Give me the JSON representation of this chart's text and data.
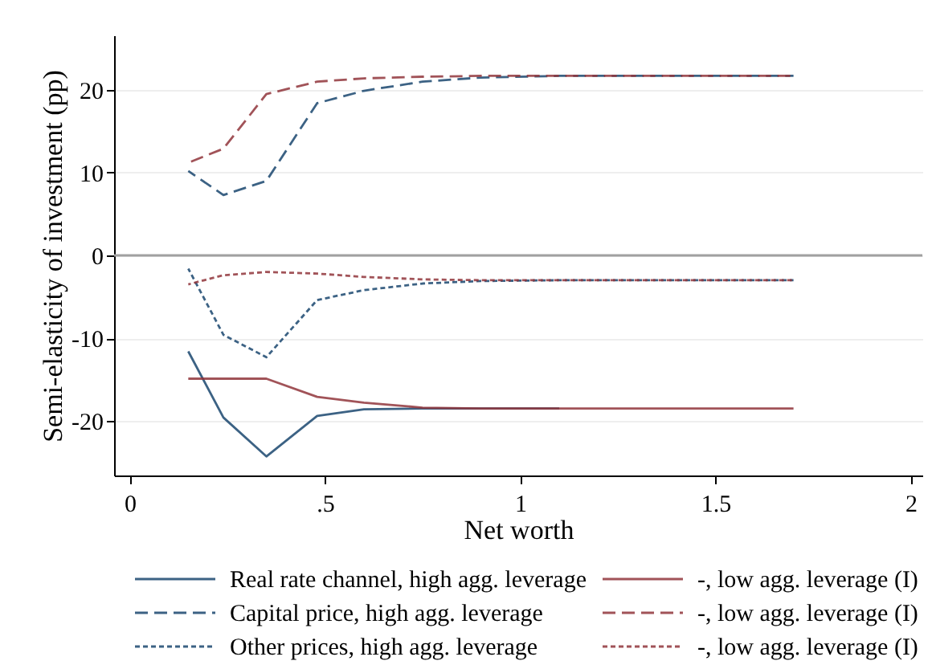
{
  "chart_data": {
    "type": "line",
    "xlabel": "Net worth",
    "ylabel": "Semi-elasticity of investment (pp)",
    "x": [
      0.15,
      0.24,
      0.35,
      0.48,
      0.6,
      0.75,
      0.9,
      1.1,
      1.3,
      1.5,
      1.7
    ],
    "xlim": [
      -0.04,
      2.03
    ],
    "xticks": [
      0,
      {
        "value": 0.5,
        "label": ".5"
      },
      1,
      1.5,
      2
    ],
    "ylim": [
      -26.6,
      26.6
    ],
    "yticks": [
      -20,
      -10,
      0,
      10,
      20
    ],
    "grid": "y",
    "legend": "bottom",
    "ref_lines": [
      {
        "axis": "y",
        "value": 0,
        "color": "#a0a0a0"
      }
    ],
    "series": [
      {
        "name": "Real rate channel, high agg. leverage",
        "color": "#1a476f",
        "line_style": "solid",
        "values": [
          -11.6,
          -19.6,
          -24.3,
          -19.4,
          -18.6,
          -18.5,
          -18.5,
          -18.5,
          null,
          null,
          null
        ]
      },
      {
        "name": "-, low agg. leverage (I)",
        "color": "#90353b",
        "line_style": "solid",
        "values": [
          -14.9,
          -14.9,
          -14.9,
          -17.1,
          -17.8,
          -18.4,
          -18.5,
          -18.5,
          -18.5,
          -18.5,
          -18.5
        ]
      },
      {
        "name": "Capital price, high agg. leverage",
        "color": "#1a476f",
        "line_style": "dashed",
        "values": [
          10.2,
          7.3,
          9.0,
          18.4,
          19.9,
          21.0,
          21.5,
          21.7,
          21.7,
          21.7,
          21.7
        ]
      },
      {
        "name": "-, low agg. leverage (I)",
        "color": "#90353b",
        "line_style": "dashed",
        "values": [
          11.2,
          12.9,
          19.5,
          21.0,
          21.4,
          21.6,
          21.7,
          21.7,
          21.7,
          21.7,
          21.7
        ]
      },
      {
        "name": "Other prices, high agg. leverage",
        "color": "#1a476f",
        "line_style": "dotted",
        "values": [
          -1.6,
          -9.6,
          -12.3,
          -5.4,
          -4.2,
          -3.4,
          -3.1,
          -3.0,
          -3.0,
          -3.0,
          -3.0
        ]
      },
      {
        "name": "-, low agg. leverage (I)",
        "color": "#90353b",
        "line_style": "dotted",
        "values": [
          -3.5,
          -2.4,
          -2.0,
          -2.2,
          -2.6,
          -2.9,
          -3.0,
          -3.0,
          -3.0,
          -3.0,
          -3.0
        ]
      }
    ]
  }
}
